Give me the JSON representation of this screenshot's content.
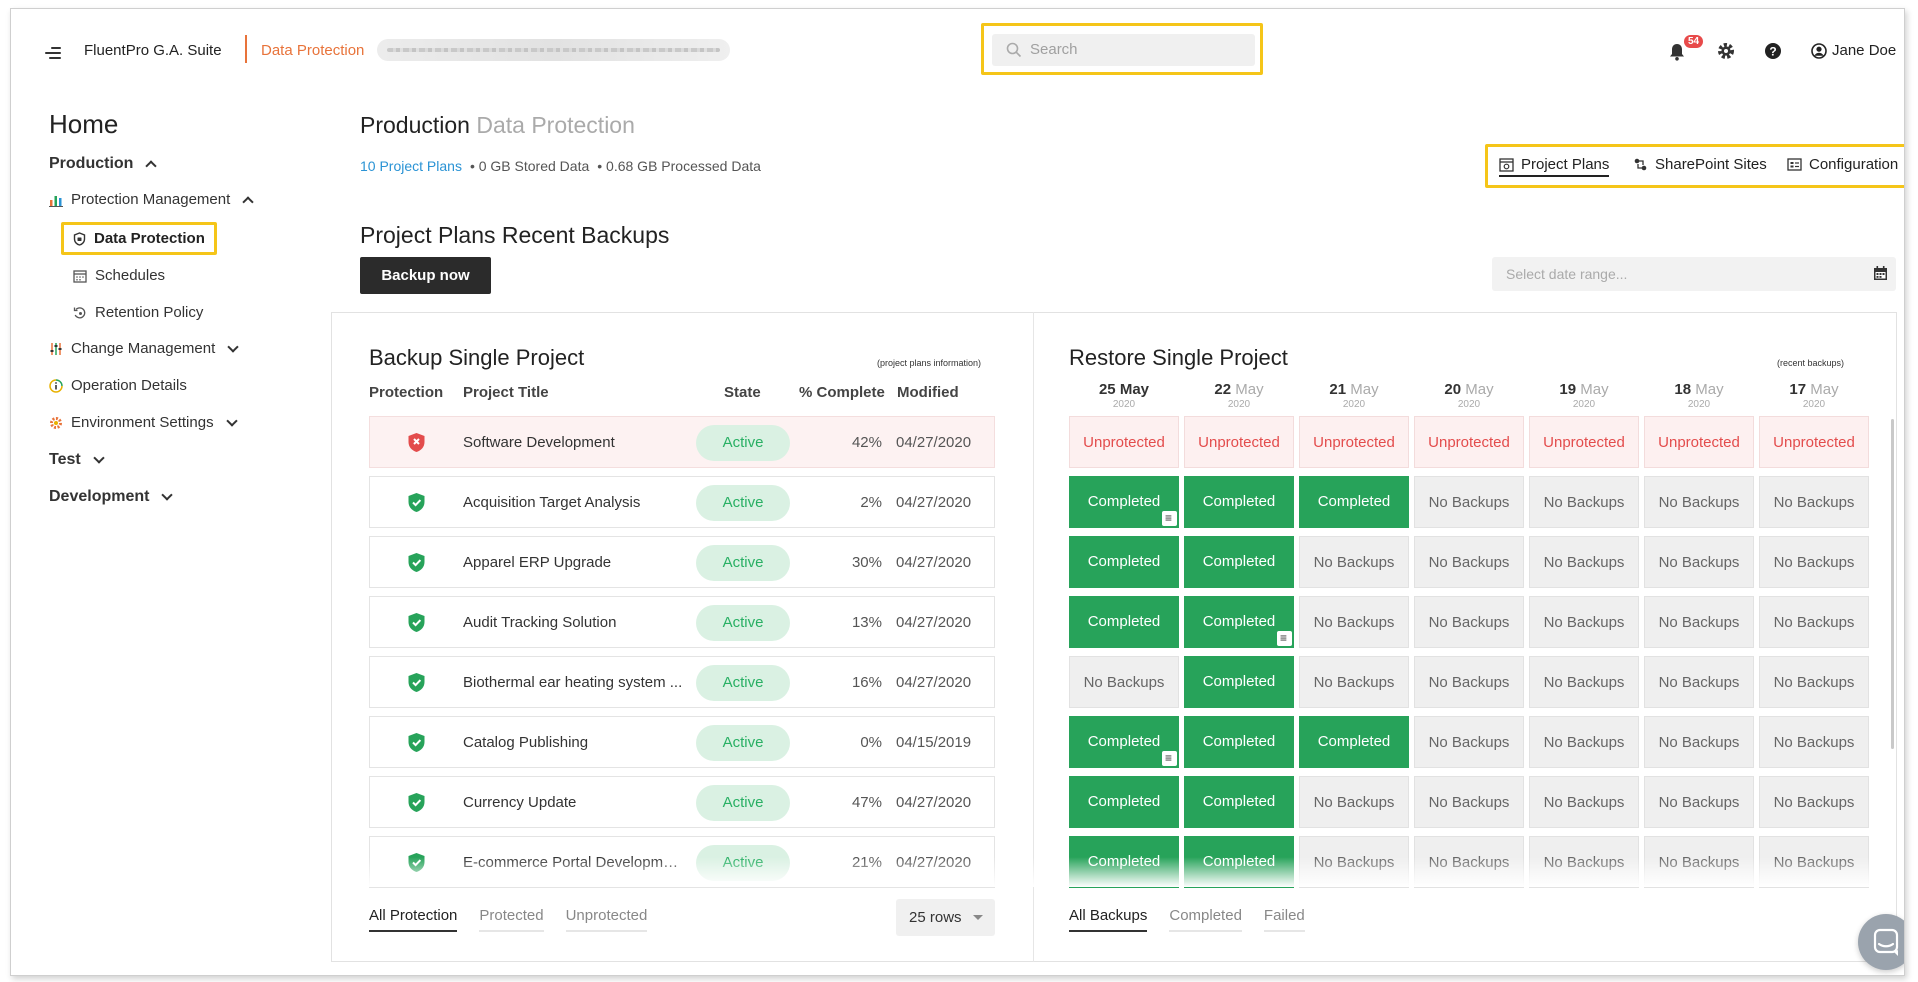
{
  "header": {
    "app_name": "FluentPro G.A. Suite",
    "module_name": "Data Protection",
    "search_placeholder": "Search",
    "notification_count": "54",
    "user_name": "Jane Doe"
  },
  "sidebar": {
    "home": "Home",
    "production": "Production",
    "protection_management": "Protection Management",
    "data_protection": "Data Protection",
    "schedules": "Schedules",
    "retention_policy": "Retention Policy",
    "change_management": "Change Management",
    "operation_details": "Operation Details",
    "environment_settings": "Environment Settings",
    "test": "Test",
    "development": "Development"
  },
  "page": {
    "title": "Production",
    "title_sub": "Data Protection",
    "stats": {
      "plans": "10 Project Plans",
      "stored": "• 0 GB Stored Data",
      "processed": "• 0.68 GB Processed Data"
    },
    "nav": {
      "project_plans": "Project Plans",
      "sharepoint_sites": "SharePoint Sites",
      "configuration": "Configuration"
    },
    "section_title": "Project Plans Recent Backups",
    "backup_now": "Backup now",
    "date_range_placeholder": "Select date range..."
  },
  "backup_panel": {
    "title": "Backup Single Project",
    "note": "(project plans information)",
    "columns": {
      "protection": "Protection",
      "title": "Project Title",
      "state": "State",
      "complete": "% Complete",
      "modified": "Modified"
    },
    "rows": [
      {
        "title": "Software Development",
        "state": "Active",
        "pct": "42%",
        "modified": "04/27/2020",
        "protected": false
      },
      {
        "title": "Acquisition Target Analysis",
        "state": "Active",
        "pct": "2%",
        "modified": "04/27/2020",
        "protected": true
      },
      {
        "title": "Apparel ERP Upgrade",
        "state": "Active",
        "pct": "30%",
        "modified": "04/27/2020",
        "protected": true
      },
      {
        "title": "Audit Tracking Solution",
        "state": "Active",
        "pct": "13%",
        "modified": "04/27/2020",
        "protected": true
      },
      {
        "title": "Biothermal ear heating system ...",
        "state": "Active",
        "pct": "16%",
        "modified": "04/27/2020",
        "protected": true
      },
      {
        "title": "Catalog Publishing",
        "state": "Active",
        "pct": "0%",
        "modified": "04/15/2019",
        "protected": true
      },
      {
        "title": "Currency Update",
        "state": "Active",
        "pct": "47%",
        "modified": "04/27/2020",
        "protected": true
      },
      {
        "title": "E-commerce Portal Developme...",
        "state": "Active",
        "pct": "21%",
        "modified": "04/27/2020",
        "protected": true
      }
    ],
    "filters": [
      "All Protection",
      "Protected",
      "Unprotected"
    ],
    "rows_per_page": "25 rows"
  },
  "restore_panel": {
    "title": "Restore Single Project",
    "note": "(recent backups)",
    "dates": [
      {
        "day": "25",
        "month": "May",
        "year": "2020"
      },
      {
        "day": "22",
        "month": "May",
        "year": "2020"
      },
      {
        "day": "21",
        "month": "May",
        "year": "2020"
      },
      {
        "day": "20",
        "month": "May",
        "year": "2020"
      },
      {
        "day": "19",
        "month": "May",
        "year": "2020"
      },
      {
        "day": "18",
        "month": "May",
        "year": "2020"
      },
      {
        "day": "17",
        "month": "May",
        "year": "2020"
      }
    ],
    "status_labels": {
      "unprotected": "Unprotected",
      "completed": "Completed",
      "no_backups": "No Backups"
    },
    "grid": [
      [
        "U",
        "U",
        "U",
        "U",
        "U",
        "U",
        "U"
      ],
      [
        "CD",
        "C",
        "C",
        "N",
        "N",
        "N",
        "N"
      ],
      [
        "C",
        "C",
        "N",
        "N",
        "N",
        "N",
        "N"
      ],
      [
        "C",
        "CD",
        "N",
        "N",
        "N",
        "N",
        "N"
      ],
      [
        "N",
        "C",
        "N",
        "N",
        "N",
        "N",
        "N"
      ],
      [
        "CD",
        "C",
        "C",
        "N",
        "N",
        "N",
        "N"
      ],
      [
        "C",
        "C",
        "N",
        "N",
        "N",
        "N",
        "N"
      ],
      [
        "C",
        "C",
        "N",
        "N",
        "N",
        "N",
        "N"
      ]
    ],
    "filters": [
      "All Backups",
      "Completed",
      "Failed"
    ]
  },
  "colors": {
    "accent_orange": "#e8733a",
    "highlight_yellow": "#f5c518",
    "completed_green": "#27a35a",
    "unprotected_red": "#e34c4c",
    "link_blue": "#2a93d5"
  }
}
